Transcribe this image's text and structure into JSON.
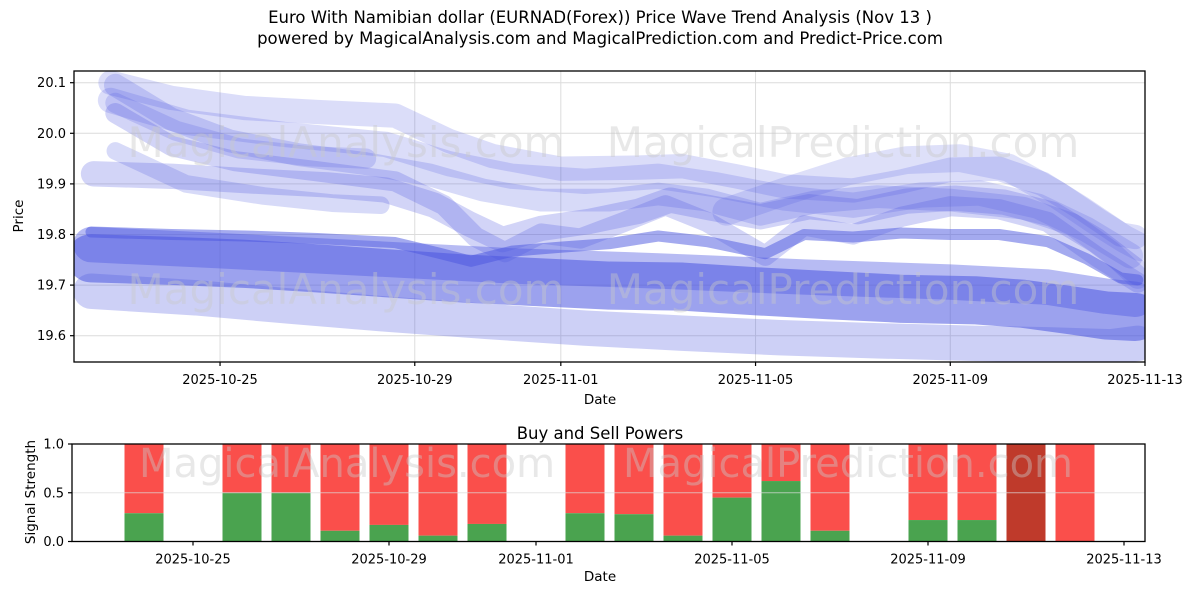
{
  "title": {
    "line1": "Euro With Namibian dollar (EURNAD(Forex)) Price Wave Trend Analysis (Nov 13 )",
    "line2": "powered by MagicalAnalysis.com and MagicalPrediction.com and Predict-Price.com"
  },
  "watermark": {
    "text_left": "MagicalAnalysis.com",
    "text_right": "MagicalPrediction.com",
    "color": "#c9c9c9",
    "opacity": 0.42
  },
  "chart_data": [
    {
      "type": "area",
      "title": "",
      "xlabel": "Date",
      "ylabel": "Price",
      "ylim": [
        19.55,
        20.12
      ],
      "grid": true,
      "x_base_date": "2025-10-22",
      "x_span_days": 22,
      "x_ticks": [
        "2025-10-25",
        "2025-10-29",
        "2025-11-01",
        "2025-11-05",
        "2025-11-09",
        "2025-11-13"
      ],
      "y_ticks": [
        {
          "value": 20.1,
          "label": "20.1"
        },
        {
          "value": 20.0,
          "label": "20.0"
        },
        {
          "value": 19.9,
          "label": "19.9"
        },
        {
          "value": 19.8,
          "label": "19.8"
        },
        {
          "value": 19.7,
          "label": "19.7"
        },
        {
          "value": 19.6,
          "label": "19.6"
        }
      ],
      "band_color": "#4a55e0",
      "bands": [
        {
          "name": "upper-fan-1",
          "width": 0.048,
          "opacity": 0.2,
          "points": [
            [
              0.75,
              20.1
            ],
            [
              2,
              20.07
            ],
            [
              3.5,
              20.05
            ],
            [
              5,
              20.042
            ],
            [
              6.6,
              20.035
            ],
            [
              7.7,
              19.985
            ],
            [
              8.6,
              19.955
            ],
            [
              10,
              19.93
            ],
            [
              11.5,
              19.932
            ],
            [
              12.5,
              19.935
            ],
            [
              13.6,
              19.915
            ],
            [
              14.6,
              19.895
            ],
            [
              16,
              19.887
            ],
            [
              17,
              19.905
            ],
            [
              18,
              19.928
            ],
            [
              19,
              19.93
            ],
            [
              19.9,
              19.9
            ],
            [
              20.7,
              19.852
            ],
            [
              21.5,
              19.8
            ],
            [
              21.8,
              19.795
            ]
          ]
        },
        {
          "name": "upper-fan-2",
          "width": 0.05,
          "opacity": 0.2,
          "points": [
            [
              0.75,
              20.065
            ],
            [
              2.3,
              20.022
            ],
            [
              4.3,
              19.998
            ],
            [
              6.4,
              19.978
            ],
            [
              7.7,
              19.94
            ],
            [
              9,
              19.915
            ],
            [
              10.5,
              19.905
            ],
            [
              12,
              19.915
            ],
            [
              13.2,
              19.898
            ],
            [
              14.6,
              19.872
            ],
            [
              16,
              19.858
            ],
            [
              17.4,
              19.878
            ],
            [
              18.6,
              19.882
            ],
            [
              19.8,
              19.856
            ],
            [
              20.8,
              19.81
            ],
            [
              21.7,
              19.758
            ]
          ]
        },
        {
          "name": "upper-steep-1",
          "width": 0.045,
          "opacity": 0.22,
          "points": [
            [
              0.85,
              20.095
            ],
            [
              2,
              20.028
            ],
            [
              3.2,
              19.985
            ],
            [
              4.6,
              19.958
            ],
            [
              6,
              19.94
            ],
            [
              7.3,
              19.918
            ],
            [
              8.4,
              19.888
            ],
            [
              9.6,
              19.868
            ],
            [
              11,
              19.868
            ],
            [
              12,
              19.88
            ],
            [
              13,
              19.868
            ],
            [
              14.1,
              19.84
            ],
            [
              15.2,
              19.864
            ],
            [
              16.5,
              19.875
            ],
            [
              18,
              19.868
            ],
            [
              19.5,
              19.852
            ],
            [
              20.5,
              19.82
            ],
            [
              21.3,
              19.765
            ],
            [
              21.85,
              19.715
            ]
          ]
        },
        {
          "name": "upper-steep-2",
          "width": 0.04,
          "opacity": 0.25,
          "points": [
            [
              0.85,
              20.04
            ],
            [
              2,
              19.975
            ],
            [
              3.3,
              19.945
            ],
            [
              5,
              19.925
            ],
            [
              6.6,
              19.905
            ],
            [
              7.6,
              19.858
            ],
            [
              8.25,
              19.795
            ],
            [
              8.85,
              19.765
            ],
            [
              9.6,
              19.802
            ],
            [
              10.4,
              19.792
            ],
            [
              11.3,
              19.825
            ],
            [
              12.15,
              19.858
            ],
            [
              13,
              19.825
            ],
            [
              14.2,
              19.758
            ],
            [
              15,
              19.818
            ],
            [
              16,
              19.8
            ],
            [
              17,
              19.835
            ],
            [
              18,
              19.856
            ],
            [
              19,
              19.85
            ],
            [
              20,
              19.825
            ],
            [
              21,
              19.757
            ],
            [
              21.85,
              19.705
            ]
          ]
        },
        {
          "name": "mid-band",
          "width": 0.05,
          "opacity": 0.25,
          "points": [
            [
              0.4,
              19.92
            ],
            [
              2,
              19.915
            ],
            [
              3.6,
              19.906
            ],
            [
              5.2,
              19.898
            ],
            [
              6.4,
              19.888
            ],
            [
              7.4,
              19.858
            ],
            [
              8.1,
              19.822
            ],
            [
              8.8,
              19.79
            ],
            [
              9.6,
              19.812
            ],
            [
              10.6,
              19.826
            ],
            [
              11.6,
              19.846
            ],
            [
              12.25,
              19.868
            ],
            [
              13.1,
              19.852
            ],
            [
              14.1,
              19.835
            ],
            [
              15.1,
              19.855
            ],
            [
              16.1,
              19.845
            ],
            [
              17.1,
              19.866
            ],
            [
              18.1,
              19.872
            ],
            [
              19.1,
              19.864
            ],
            [
              20.1,
              19.84
            ],
            [
              21,
              19.788
            ],
            [
              21.85,
              19.725
            ]
          ]
        },
        {
          "name": "dark-stripe",
          "width": 0.022,
          "opacity": 0.5,
          "points": [
            [
              0.35,
              19.805
            ],
            [
              2,
              19.8
            ],
            [
              3.5,
              19.797
            ],
            [
              5,
              19.792
            ],
            [
              6.6,
              19.784
            ],
            [
              7.5,
              19.763
            ],
            [
              8.15,
              19.747
            ],
            [
              9,
              19.767
            ],
            [
              10,
              19.775
            ],
            [
              11,
              19.782
            ],
            [
              12,
              19.797
            ],
            [
              13,
              19.786
            ],
            [
              14.2,
              19.762
            ],
            [
              15,
              19.8
            ],
            [
              16,
              19.795
            ],
            [
              17,
              19.803
            ],
            [
              18,
              19.8
            ],
            [
              19,
              19.8
            ],
            [
              20,
              19.786
            ],
            [
              20.8,
              19.752
            ],
            [
              21.5,
              19.714
            ],
            [
              21.85,
              19.71
            ]
          ]
        },
        {
          "name": "main-wide-band",
          "width": 0.095,
          "opacity": 0.55,
          "points": [
            [
              0.35,
              19.753
            ],
            [
              2,
              19.748
            ],
            [
              3.5,
              19.742
            ],
            [
              5,
              19.733
            ],
            [
              6.5,
              19.723
            ],
            [
              8,
              19.713
            ],
            [
              9.5,
              19.706
            ],
            [
              11,
              19.699
            ],
            [
              12.5,
              19.697
            ],
            [
              14,
              19.688
            ],
            [
              15.5,
              19.68
            ],
            [
              17,
              19.673
            ],
            [
              18.5,
              19.67
            ],
            [
              19.5,
              19.663
            ],
            [
              20.5,
              19.65
            ],
            [
              21.2,
              19.64
            ],
            [
              21.8,
              19.637
            ]
          ]
        },
        {
          "name": "main-wide-band-2",
          "width": 0.07,
          "opacity": 0.4,
          "points": [
            [
              0.35,
              19.78
            ],
            [
              3,
              19.768
            ],
            [
              6,
              19.753
            ],
            [
              9,
              19.738
            ],
            [
              12,
              19.728
            ],
            [
              15,
              19.716
            ],
            [
              18,
              19.706
            ],
            [
              20,
              19.696
            ],
            [
              21.2,
              19.678
            ],
            [
              21.8,
              19.672
            ]
          ]
        },
        {
          "name": "lower-light-band",
          "width": 0.07,
          "opacity": 0.28,
          "points": [
            [
              0.35,
              19.688
            ],
            [
              2.5,
              19.675
            ],
            [
              4.5,
              19.658
            ],
            [
              6.5,
              19.642
            ],
            [
              8.5,
              19.628
            ],
            [
              10.5,
              19.615
            ],
            [
              12.5,
              19.605
            ],
            [
              14.5,
              19.596
            ],
            [
              16.5,
              19.59
            ],
            [
              18.5,
              19.585
            ],
            [
              20,
              19.582
            ],
            [
              21.3,
              19.578
            ],
            [
              21.85,
              19.585
            ]
          ]
        },
        {
          "name": "right-hump",
          "width": 0.055,
          "opacity": 0.18,
          "points": [
            [
              13.4,
              19.845
            ],
            [
              14.6,
              19.885
            ],
            [
              15.9,
              19.925
            ],
            [
              17.1,
              19.947
            ],
            [
              18.2,
              19.951
            ],
            [
              19.2,
              19.932
            ],
            [
              20.2,
              19.878
            ],
            [
              21,
              19.826
            ],
            [
              21.6,
              19.79
            ],
            [
              21.9,
              19.775
            ]
          ]
        },
        {
          "name": "left-diagonal-1",
          "width": 0.04,
          "opacity": 0.2,
          "points": [
            [
              0.85,
              20.06
            ],
            [
              2.1,
              20.005
            ],
            [
              3.4,
              19.97
            ],
            [
              4.8,
              19.955
            ],
            [
              6,
              19.95
            ]
          ]
        },
        {
          "name": "left-diagonal-2",
          "width": 0.035,
          "opacity": 0.22,
          "points": [
            [
              0.85,
              19.965
            ],
            [
              2.3,
              19.9
            ],
            [
              3.9,
              19.876
            ],
            [
              5.3,
              19.862
            ],
            [
              6.3,
              19.858
            ]
          ]
        }
      ]
    },
    {
      "type": "bar",
      "title": "Buy and Sell Powers",
      "xlabel": "Date",
      "ylabel": "Signal Strength",
      "ylim": [
        0.0,
        1.0
      ],
      "stack_total": 1.0,
      "x_base_date": "2025-10-22",
      "x_ticks": [
        "2025-10-25",
        "2025-10-29",
        "2025-11-01",
        "2025-11-05",
        "2025-11-09",
        "2025-11-13"
      ],
      "y_ticks": [
        {
          "value": 0.0,
          "label": "0.0"
        },
        {
          "value": 0.5,
          "label": "0.5"
        },
        {
          "value": 1.0,
          "label": "1.0"
        }
      ],
      "buy_color": "#4aa34f",
      "sell_color": "#fa4f4b",
      "strong_sell_color": "#bf3a2b",
      "bars": [
        {
          "date": "2025-10-24",
          "buy": 0.29,
          "sell": 0.71,
          "variant": "normal"
        },
        {
          "date": "2025-10-26",
          "buy": 0.5,
          "sell": 0.5,
          "variant": "normal"
        },
        {
          "date": "2025-10-27",
          "buy": 0.5,
          "sell": 0.5,
          "variant": "normal"
        },
        {
          "date": "2025-10-28",
          "buy": 0.11,
          "sell": 0.89,
          "variant": "normal"
        },
        {
          "date": "2025-10-29",
          "buy": 0.17,
          "sell": 0.83,
          "variant": "normal"
        },
        {
          "date": "2025-10-30",
          "buy": 0.06,
          "sell": 0.94,
          "variant": "normal"
        },
        {
          "date": "2025-10-31",
          "buy": 0.18,
          "sell": 0.82,
          "variant": "normal"
        },
        {
          "date": "2025-11-02",
          "buy": 0.29,
          "sell": 0.71,
          "variant": "normal"
        },
        {
          "date": "2025-11-03",
          "buy": 0.28,
          "sell": 0.72,
          "variant": "normal"
        },
        {
          "date": "2025-11-04",
          "buy": 0.06,
          "sell": 0.94,
          "variant": "normal"
        },
        {
          "date": "2025-11-05",
          "buy": 0.45,
          "sell": 0.55,
          "variant": "normal"
        },
        {
          "date": "2025-11-06",
          "buy": 0.62,
          "sell": 0.38,
          "variant": "normal"
        },
        {
          "date": "2025-11-07",
          "buy": 0.11,
          "sell": 0.89,
          "variant": "normal"
        },
        {
          "date": "2025-11-09",
          "buy": 0.22,
          "sell": 0.78,
          "variant": "normal"
        },
        {
          "date": "2025-11-10",
          "buy": 0.22,
          "sell": 0.78,
          "variant": "normal"
        },
        {
          "date": "2025-11-11",
          "buy": 0.0,
          "sell": 1.0,
          "variant": "strong"
        },
        {
          "date": "2025-11-12",
          "buy": 0.0,
          "sell": 1.0,
          "variant": "normal"
        }
      ]
    }
  ]
}
